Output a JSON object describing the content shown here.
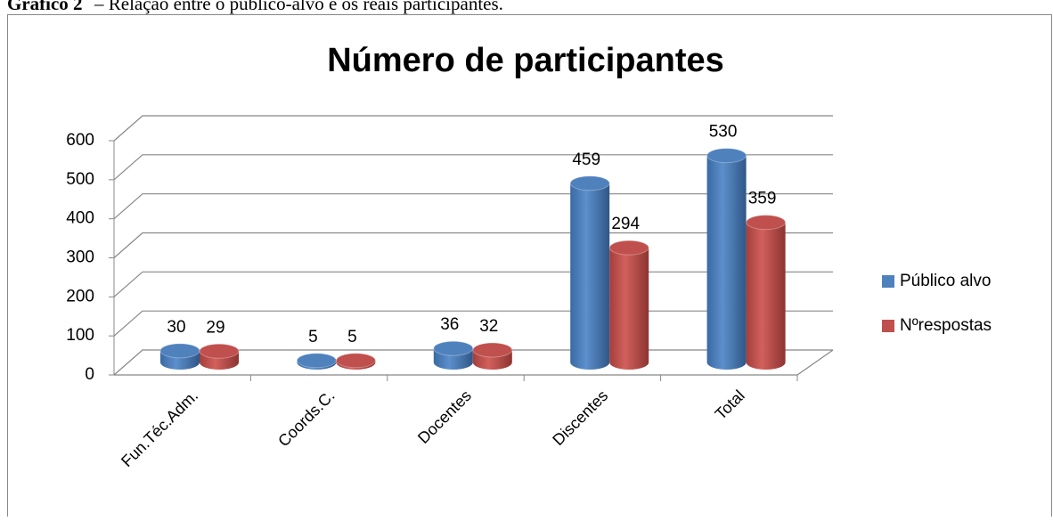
{
  "chart_data": {
    "type": "bar3d",
    "caption_label": "Gráfico 2",
    "caption": "– Relação entre o público-alvo e os reais participantes.",
    "title": "Número de participantes",
    "categories": [
      "Fun.Téc.Adm.",
      "Coords.C.",
      "Docentes",
      "Discentes",
      "Total"
    ],
    "series": [
      {
        "name": "Público alvo",
        "color": "#4f81bd",
        "values": [
          30,
          5,
          36,
          459,
          530
        ]
      },
      {
        "name": "Nºrespostas",
        "color": "#c0504d",
        "values": [
          29,
          5,
          32,
          294,
          359
        ]
      }
    ],
    "ylim": [
      0,
      600
    ],
    "yticks": [
      0,
      100,
      200,
      300,
      400,
      500,
      600
    ],
    "grid": true,
    "legend": "right"
  }
}
